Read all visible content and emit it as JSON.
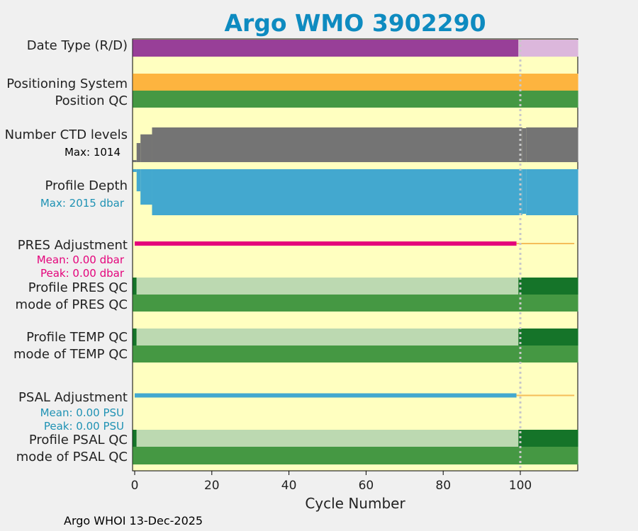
{
  "chart_data": {
    "type": "status-timeline",
    "title": "Argo WMO 3902290",
    "xlabel": "Cycle Number",
    "xlim": [
      -0.5,
      115
    ],
    "xticks": [
      0,
      20,
      40,
      60,
      80,
      100
    ],
    "mode_change_cycle": 100,
    "footer": "Argo WHOI 13-Dec-2025",
    "rows": [
      {
        "label": "Date Type (R/D)",
        "segments": [
          {
            "from": -0.5,
            "to": 99.5,
            "color": "#983f98"
          },
          {
            "from": 99.5,
            "to": 115,
            "color": "#dcb7dc"
          }
        ]
      },
      {
        "label": "Positioning System",
        "segments": [
          {
            "from": -0.5,
            "to": 115,
            "color": "#fdb43f"
          }
        ]
      },
      {
        "label": "Position QC",
        "segments": [
          {
            "from": -0.5,
            "to": 115,
            "color": "#459843"
          }
        ]
      },
      {
        "label": "Number CTD levels",
        "note": "Max: 1014",
        "note_color": "#000000",
        "color": "#747474",
        "steps": [
          {
            "from": -0.5,
            "to": 0.5,
            "frac": 0.06
          },
          {
            "from": 0.5,
            "to": 1.5,
            "frac": 0.55
          },
          {
            "from": 1.5,
            "to": 4.5,
            "frac": 0.8
          },
          {
            "from": 4.5,
            "to": 100.5,
            "frac": 1.0
          },
          {
            "from": 100.5,
            "to": 101.5,
            "frac": 0.98
          },
          {
            "from": 101.5,
            "to": 115,
            "frac": 1.0
          }
        ]
      },
      {
        "label": "Profile Depth",
        "note": "Max: 2015 dbar",
        "note_color": "#1f92b4",
        "color": "#43a8cf",
        "steps": [
          {
            "from": -0.5,
            "to": 0.5,
            "frac": 0.94
          },
          {
            "from": 0.5,
            "to": 1.5,
            "frac": 0.52
          },
          {
            "from": 1.5,
            "to": 4.5,
            "frac": 0.23
          },
          {
            "from": 4.5,
            "to": 100.5,
            "frac": 0.0
          },
          {
            "from": 100.5,
            "to": 101.5,
            "frac": 0.03
          },
          {
            "from": 101.5,
            "to": 115,
            "frac": 0.0
          }
        ]
      },
      {
        "label": "PRES Adjustment",
        "note": "Mean: 0.00 dbar",
        "note2": "Peak: 0.00 dbar",
        "note_color": "#e4037b",
        "lines": [
          {
            "from": 0,
            "to": 99,
            "color": "#e4037b",
            "width": 6
          },
          {
            "from": 99,
            "to": 114,
            "color": "#f5bd59",
            "width": 2
          }
        ]
      },
      {
        "label": "Profile PRES QC",
        "segments": [
          {
            "from": -0.5,
            "to": 0.5,
            "color": "#157429"
          },
          {
            "from": 0.5,
            "to": 99.5,
            "color": "#bcd9b1"
          },
          {
            "from": 99.5,
            "to": 115,
            "color": "#157429"
          }
        ]
      },
      {
        "label": "mode of PRES QC",
        "segments": [
          {
            "from": -0.5,
            "to": 115,
            "color": "#459843"
          }
        ]
      },
      {
        "label": "Profile TEMP QC",
        "segments": [
          {
            "from": -0.5,
            "to": 0.5,
            "color": "#157429"
          },
          {
            "from": 0.5,
            "to": 99.5,
            "color": "#bcd9b1"
          },
          {
            "from": 99.5,
            "to": 115,
            "color": "#157429"
          }
        ]
      },
      {
        "label": "mode of TEMP QC",
        "segments": [
          {
            "from": -0.5,
            "to": 115,
            "color": "#459843"
          }
        ]
      },
      {
        "label": "PSAL Adjustment",
        "note": "Mean: 0.00 PSU",
        "note2": "Peak: 0.00 PSU",
        "note_color": "#1f92b4",
        "lines": [
          {
            "from": 0,
            "to": 99,
            "color": "#43a8cf",
            "width": 6
          },
          {
            "from": 99,
            "to": 114,
            "color": "#f5bd59",
            "width": 2
          }
        ]
      },
      {
        "label": "Profile PSAL QC",
        "segments": [
          {
            "from": -0.5,
            "to": 0.5,
            "color": "#157429"
          },
          {
            "from": 0.5,
            "to": 99.5,
            "color": "#bcd9b1"
          },
          {
            "from": 99.5,
            "to": 115,
            "color": "#157429"
          }
        ]
      },
      {
        "label": "mode of PSAL QC",
        "segments": [
          {
            "from": -0.5,
            "to": 115,
            "color": "#459843"
          }
        ]
      }
    ]
  },
  "colors": {
    "plot_background": "#ffffc0",
    "title": "#0e8bc0",
    "divider": "#c8c8c8"
  }
}
